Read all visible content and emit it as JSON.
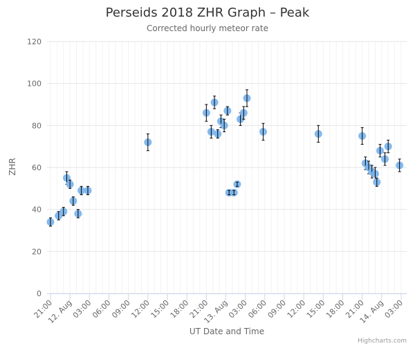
{
  "chart_data": {
    "type": "scatter",
    "title": "Perseids 2018 ZHR Graph – Peak",
    "subtitle": "Corrected hourly meteor rate",
    "xlabel": "UT Date and Time",
    "ylabel": "ZHR",
    "ylim": [
      0,
      120
    ],
    "yticks": [
      0,
      20,
      40,
      60,
      80,
      100,
      120
    ],
    "xlim": [
      "2018-08-11 21:00",
      "2018-08-14 03:00"
    ],
    "xticks": [
      "21:00",
      "12. Aug",
      "03:00",
      "06:00",
      "09:00",
      "12:00",
      "15:00",
      "18:00",
      "21:00",
      "13. Aug",
      "03:00",
      "06:00",
      "09:00",
      "12:00",
      "15:00",
      "18:00",
      "21:00",
      "14. Aug",
      "03:00"
    ],
    "grid": true,
    "legend": "none",
    "marker_color": "#7cb5ec",
    "error_bar_color": "#000000",
    "series": [
      {
        "points": [
          {
            "x": "2018-08-11 21:00",
            "y": 34,
            "err": [
              32,
              36
            ]
          },
          {
            "x": "2018-08-11 22:15",
            "y": 37,
            "err": [
              35,
              39
            ]
          },
          {
            "x": "2018-08-11 23:00",
            "y": 39,
            "err": [
              37,
              41
            ]
          },
          {
            "x": "2018-08-11 23:30",
            "y": 55,
            "err": [
              52,
              58
            ]
          },
          {
            "x": "2018-08-12 00:00",
            "y": 52,
            "err": [
              50,
              54
            ]
          },
          {
            "x": "2018-08-12 00:30",
            "y": 44,
            "err": [
              42,
              46
            ]
          },
          {
            "x": "2018-08-12 01:15",
            "y": 38,
            "err": [
              36,
              40
            ]
          },
          {
            "x": "2018-08-12 01:45",
            "y": 49,
            "err": [
              47,
              51
            ]
          },
          {
            "x": "2018-08-12 02:45",
            "y": 49,
            "err": [
              47,
              51
            ]
          },
          {
            "x": "2018-08-12 12:00",
            "y": 72,
            "err": [
              68,
              76
            ]
          },
          {
            "x": "2018-08-12 21:00",
            "y": 86,
            "err": [
              82,
              90
            ]
          },
          {
            "x": "2018-08-12 21:45",
            "y": 77,
            "err": [
              74,
              80
            ]
          },
          {
            "x": "2018-08-12 22:15",
            "y": 91,
            "err": [
              88,
              94
            ]
          },
          {
            "x": "2018-08-12 22:45",
            "y": 76,
            "err": [
              74,
              78
            ]
          },
          {
            "x": "2018-08-12 23:15",
            "y": 82,
            "err": [
              79,
              85
            ]
          },
          {
            "x": "2018-08-12 23:45",
            "y": 80,
            "err": [
              77,
              83
            ]
          },
          {
            "x": "2018-08-13 00:15",
            "y": 87,
            "err": [
              85,
              89
            ]
          },
          {
            "x": "2018-08-13 00:30",
            "y": 48,
            "err": [
              47,
              49
            ]
          },
          {
            "x": "2018-08-13 01:15",
            "y": 48,
            "err": [
              47,
              49
            ]
          },
          {
            "x": "2018-08-13 01:45",
            "y": 52,
            "err": [
              51,
              53
            ]
          },
          {
            "x": "2018-08-13 02:15",
            "y": 83,
            "err": [
              80,
              86
            ]
          },
          {
            "x": "2018-08-13 02:45",
            "y": 86,
            "err": [
              83,
              89
            ]
          },
          {
            "x": "2018-08-13 03:15",
            "y": 93,
            "err": [
              89,
              97
            ]
          },
          {
            "x": "2018-08-13 05:45",
            "y": 77,
            "err": [
              73,
              81
            ]
          },
          {
            "x": "2018-08-13 14:15",
            "y": 76,
            "err": [
              72,
              80
            ]
          },
          {
            "x": "2018-08-13 21:00",
            "y": 75,
            "err": [
              71,
              79
            ]
          },
          {
            "x": "2018-08-13 21:30",
            "y": 62,
            "err": [
              59,
              65
            ]
          },
          {
            "x": "2018-08-13 22:00",
            "y": 60,
            "err": [
              57,
              63
            ]
          },
          {
            "x": "2018-08-13 22:30",
            "y": 58,
            "err": [
              55,
              61
            ]
          },
          {
            "x": "2018-08-13 23:00",
            "y": 57,
            "err": [
              54,
              60
            ]
          },
          {
            "x": "2018-08-13 23:15",
            "y": 53,
            "err": [
              51,
              55
            ]
          },
          {
            "x": "2018-08-13 23:45",
            "y": 68,
            "err": [
              65,
              71
            ]
          },
          {
            "x": "2018-08-14 00:30",
            "y": 64,
            "err": [
              61,
              67
            ]
          },
          {
            "x": "2018-08-14 01:00",
            "y": 70,
            "err": [
              67,
              73
            ]
          },
          {
            "x": "2018-08-14 02:45",
            "y": 61,
            "err": [
              58,
              64
            ]
          }
        ]
      }
    ]
  },
  "credits": "Highcharts.com"
}
